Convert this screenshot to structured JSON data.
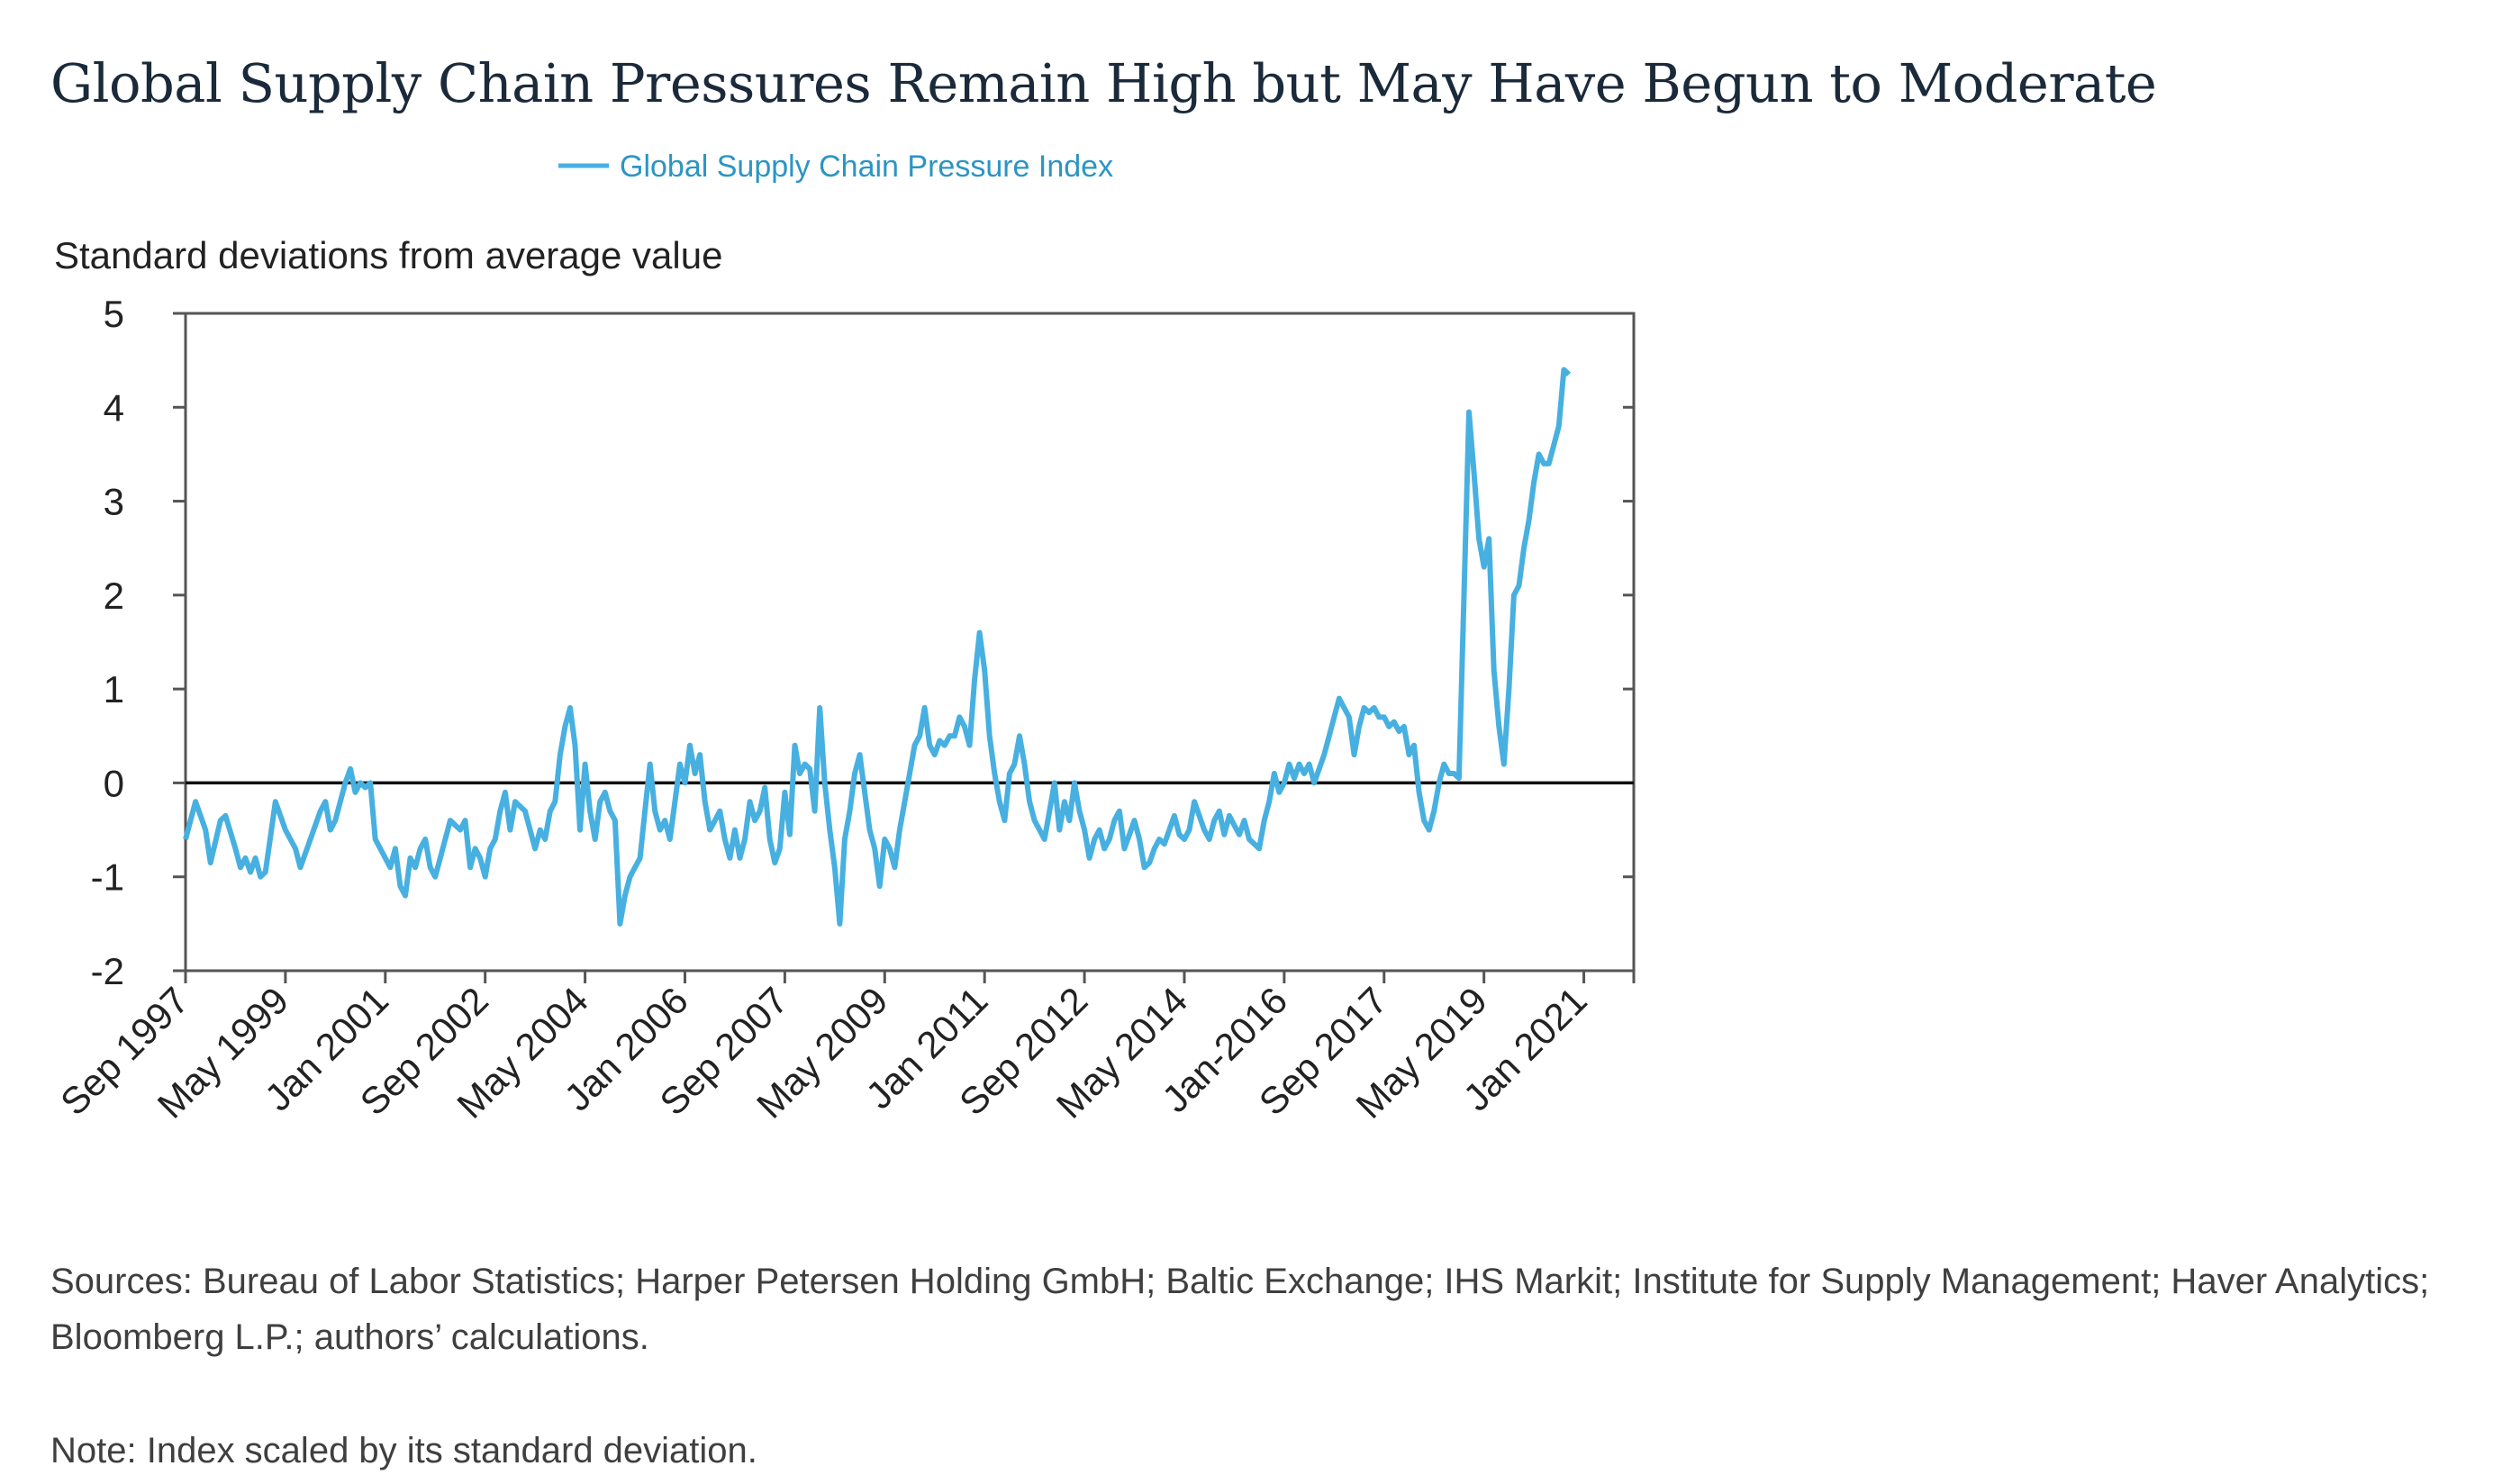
{
  "title": "Global Supply Chain Pressures Remain High but May Have Begun to Moderate",
  "sources": "Sources: Bureau of Labor Statistics; Harper Petersen Holding GmbH; Baltic Exchange; IHS Markit; Institute for Supply Management; Haver Analytics; Bloomberg L.P.; authors’ calculations.",
  "note": "Note: Index scaled by its standard deviation.",
  "colors": {
    "series": "#47b0e0",
    "zero_line": "#111111",
    "axis": "#555555",
    "title": "#1b2a3a"
  },
  "chart_data": {
    "type": "line",
    "title": "",
    "ylabel": "Standard deviations from average value",
    "xlabel": "",
    "ylim": [
      -2,
      5
    ],
    "yticks": [
      5,
      4,
      3,
      2,
      1,
      0,
      -1,
      -2
    ],
    "x_start": "Sep 1997",
    "x_end": "Nov 2021",
    "x_tick_labels": [
      "Sep 1997",
      "May 1999",
      "Jan 2001",
      "Sep 2002",
      "May 2004",
      "Jan 2006",
      "Sep 2007",
      "May 2009",
      "Jan 2011",
      "Sep 2012",
      "May 2014",
      "Jan-2016",
      "Sep 2017",
      "May 2019",
      "Jan 2021"
    ],
    "legend": {
      "position": "top",
      "entries": [
        "Global Supply Chain Pressure Index"
      ]
    },
    "grid": false,
    "zero_line": true,
    "series": [
      {
        "name": "Global Supply Chain Pressure Index",
        "points": [
          [
            "Sep 1997",
            -0.6
          ],
          [
            "Nov 1997",
            -0.2
          ],
          [
            "Jan 1998",
            -0.5
          ],
          [
            "Feb 1998",
            -0.85
          ],
          [
            "Apr 1998",
            -0.4
          ],
          [
            "May 1998",
            -0.35
          ],
          [
            "Jul 1998",
            -0.7
          ],
          [
            "Aug 1998",
            -0.9
          ],
          [
            "Sep 1998",
            -0.8
          ],
          [
            "Oct 1998",
            -0.95
          ],
          [
            "Nov 1998",
            -0.8
          ],
          [
            "Dec 1998",
            -1.0
          ],
          [
            "Jan 1999",
            -0.95
          ],
          [
            "Mar 1999",
            -0.2
          ],
          [
            "May 1999",
            -0.5
          ],
          [
            "Jul 1999",
            -0.7
          ],
          [
            "Aug 1999",
            -0.9
          ],
          [
            "Oct 1999",
            -0.6
          ],
          [
            "Dec 1999",
            -0.3
          ],
          [
            "Jan 2000",
            -0.2
          ],
          [
            "Feb 2000",
            -0.5
          ],
          [
            "Mar 2000",
            -0.4
          ],
          [
            "May 2000",
            0.0
          ],
          [
            "Jun 2000",
            0.15
          ],
          [
            "Jul 2000",
            -0.1
          ],
          [
            "Aug 2000",
            0.0
          ],
          [
            "Sep 2000",
            -0.05
          ],
          [
            "Oct 2000",
            0.0
          ],
          [
            "Nov 2000",
            -0.6
          ],
          [
            "Jan 2001",
            -0.8
          ],
          [
            "Feb 2001",
            -0.9
          ],
          [
            "Mar 2001",
            -0.7
          ],
          [
            "Apr 2001",
            -1.1
          ],
          [
            "May 2001",
            -1.2
          ],
          [
            "Jun 2001",
            -0.8
          ],
          [
            "Jul 2001",
            -0.9
          ],
          [
            "Aug 2001",
            -0.7
          ],
          [
            "Sep 2001",
            -0.6
          ],
          [
            "Oct 2001",
            -0.9
          ],
          [
            "Nov 2001",
            -1.0
          ],
          [
            "Dec 2001",
            -0.8
          ],
          [
            "Feb 2002",
            -0.4
          ],
          [
            "Apr 2002",
            -0.5
          ],
          [
            "May 2002",
            -0.4
          ],
          [
            "Jun 2002",
            -0.9
          ],
          [
            "Jul 2002",
            -0.7
          ],
          [
            "Aug 2002",
            -0.8
          ],
          [
            "Sep 2002",
            -1.0
          ],
          [
            "Oct 2002",
            -0.7
          ],
          [
            "Nov 2002",
            -0.6
          ],
          [
            "Dec 2002",
            -0.3
          ],
          [
            "Jan 2003",
            -0.1
          ],
          [
            "Feb 2003",
            -0.5
          ],
          [
            "Mar 2003",
            -0.2
          ],
          [
            "May 2003",
            -0.3
          ],
          [
            "Jul 2003",
            -0.7
          ],
          [
            "Aug 2003",
            -0.5
          ],
          [
            "Sep 2003",
            -0.6
          ],
          [
            "Oct 2003",
            -0.3
          ],
          [
            "Nov 2003",
            -0.2
          ],
          [
            "Dec 2003",
            0.3
          ],
          [
            "Jan 2004",
            0.6
          ],
          [
            "Feb 2004",
            0.8
          ],
          [
            "Mar 2004",
            0.4
          ],
          [
            "Apr 2004",
            -0.5
          ],
          [
            "May 2004",
            0.2
          ],
          [
            "Jun 2004",
            -0.3
          ],
          [
            "Jul 2004",
            -0.6
          ],
          [
            "Aug 2004",
            -0.2
          ],
          [
            "Sep 2004",
            -0.1
          ],
          [
            "Oct 2004",
            -0.3
          ],
          [
            "Nov 2004",
            -0.4
          ],
          [
            "Dec 2004",
            -1.5
          ],
          [
            "Jan 2005",
            -1.2
          ],
          [
            "Feb 2005",
            -1.0
          ],
          [
            "Mar 2005",
            -0.9
          ],
          [
            "Apr 2005",
            -0.8
          ],
          [
            "May 2005",
            -0.3
          ],
          [
            "Jun 2005",
            0.2
          ],
          [
            "Jul 2005",
            -0.3
          ],
          [
            "Aug 2005",
            -0.5
          ],
          [
            "Sep 2005",
            -0.4
          ],
          [
            "Oct 2005",
            -0.6
          ],
          [
            "Nov 2005",
            -0.2
          ],
          [
            "Dec 2005",
            0.2
          ],
          [
            "Jan 2006",
            0.0
          ],
          [
            "Feb 2006",
            0.4
          ],
          [
            "Mar 2006",
            0.1
          ],
          [
            "Apr 2006",
            0.3
          ],
          [
            "May 2006",
            -0.2
          ],
          [
            "Jun 2006",
            -0.5
          ],
          [
            "Jul 2006",
            -0.4
          ],
          [
            "Aug 2006",
            -0.3
          ],
          [
            "Sep 2006",
            -0.6
          ],
          [
            "Oct 2006",
            -0.8
          ],
          [
            "Nov 2006",
            -0.5
          ],
          [
            "Dec 2006",
            -0.8
          ],
          [
            "Jan 2007",
            -0.6
          ],
          [
            "Feb 2007",
            -0.2
          ],
          [
            "Mar 2007",
            -0.4
          ],
          [
            "Apr 2007",
            -0.3
          ],
          [
            "May 2007",
            -0.05
          ],
          [
            "Jun 2007",
            -0.6
          ],
          [
            "Jul 2007",
            -0.85
          ],
          [
            "Aug 2007",
            -0.7
          ],
          [
            "Sep 2007",
            -0.1
          ],
          [
            "Oct 2007",
            -0.55
          ],
          [
            "Nov 2007",
            0.4
          ],
          [
            "Dec 2007",
            0.1
          ],
          [
            "Jan 2008",
            0.2
          ],
          [
            "Feb 2008",
            0.15
          ],
          [
            "Mar 2008",
            -0.3
          ],
          [
            "Apr 2008",
            0.8
          ],
          [
            "May 2008",
            0.0
          ],
          [
            "Jun 2008",
            -0.5
          ],
          [
            "Jul 2008",
            -0.9
          ],
          [
            "Aug 2008",
            -1.5
          ],
          [
            "Sep 2008",
            -0.6
          ],
          [
            "Oct 2008",
            -0.3
          ],
          [
            "Nov 2008",
            0.1
          ],
          [
            "Dec 2008",
            0.3
          ],
          [
            "Jan 2009",
            -0.1
          ],
          [
            "Feb 2009",
            -0.5
          ],
          [
            "Mar 2009",
            -0.7
          ],
          [
            "Apr 2009",
            -1.1
          ],
          [
            "May 2009",
            -0.6
          ],
          [
            "Jun 2009",
            -0.7
          ],
          [
            "Jul 2009",
            -0.9
          ],
          [
            "Aug 2009",
            -0.5
          ],
          [
            "Sep 2009",
            -0.2
          ],
          [
            "Oct 2009",
            0.1
          ],
          [
            "Nov 2009",
            0.4
          ],
          [
            "Dec 2009",
            0.5
          ],
          [
            "Jan 2010",
            0.8
          ],
          [
            "Feb 2010",
            0.4
          ],
          [
            "Mar 2010",
            0.3
          ],
          [
            "Apr 2010",
            0.45
          ],
          [
            "May 2010",
            0.4
          ],
          [
            "Jun 2010",
            0.5
          ],
          [
            "Jul 2010",
            0.5
          ],
          [
            "Aug 2010",
            0.7
          ],
          [
            "Sep 2010",
            0.6
          ],
          [
            "Oct 2010",
            0.4
          ],
          [
            "Nov 2010",
            1.1
          ],
          [
            "Dec 2010",
            1.6
          ],
          [
            "Jan 2011",
            1.2
          ],
          [
            "Feb 2011",
            0.5
          ],
          [
            "Mar 2011",
            0.1
          ],
          [
            "Apr 2011",
            -0.2
          ],
          [
            "May 2011",
            -0.4
          ],
          [
            "Jun 2011",
            0.1
          ],
          [
            "Jul 2011",
            0.2
          ],
          [
            "Aug 2011",
            0.5
          ],
          [
            "Sep 2011",
            0.2
          ],
          [
            "Oct 2011",
            -0.2
          ],
          [
            "Nov 2011",
            -0.4
          ],
          [
            "Dec 2011",
            -0.5
          ],
          [
            "Jan 2012",
            -0.6
          ],
          [
            "Feb 2012",
            -0.3
          ],
          [
            "Mar 2012",
            0.0
          ],
          [
            "Apr 2012",
            -0.5
          ],
          [
            "May 2012",
            -0.2
          ],
          [
            "Jun 2012",
            -0.4
          ],
          [
            "Jul 2012",
            0.0
          ],
          [
            "Aug 2012",
            -0.3
          ],
          [
            "Sep 2012",
            -0.5
          ],
          [
            "Oct 2012",
            -0.8
          ],
          [
            "Nov 2012",
            -0.6
          ],
          [
            "Dec 2012",
            -0.5
          ],
          [
            "Jan 2013",
            -0.7
          ],
          [
            "Feb 2013",
            -0.6
          ],
          [
            "Mar 2013",
            -0.4
          ],
          [
            "Apr 2013",
            -0.3
          ],
          [
            "May 2013",
            -0.7
          ],
          [
            "Jun 2013",
            -0.55
          ],
          [
            "Jul 2013",
            -0.4
          ],
          [
            "Aug 2013",
            -0.6
          ],
          [
            "Sep 2013",
            -0.9
          ],
          [
            "Oct 2013",
            -0.85
          ],
          [
            "Nov 2013",
            -0.7
          ],
          [
            "Dec 2013",
            -0.6
          ],
          [
            "Jan 2014",
            -0.65
          ],
          [
            "Feb 2014",
            -0.5
          ],
          [
            "Mar 2014",
            -0.35
          ],
          [
            "Apr 2014",
            -0.55
          ],
          [
            "May 2014",
            -0.6
          ],
          [
            "Jun 2014",
            -0.5
          ],
          [
            "Jul 2014",
            -0.2
          ],
          [
            "Aug 2014",
            -0.35
          ],
          [
            "Sep 2014",
            -0.5
          ],
          [
            "Oct 2014",
            -0.6
          ],
          [
            "Nov 2014",
            -0.4
          ],
          [
            "Dec 2014",
            -0.3
          ],
          [
            "Jan 2015",
            -0.55
          ],
          [
            "Feb 2015",
            -0.35
          ],
          [
            "Mar 2015",
            -0.45
          ],
          [
            "Apr 2015",
            -0.55
          ],
          [
            "May 2015",
            -0.4
          ],
          [
            "Jun 2015",
            -0.6
          ],
          [
            "Jul 2015",
            -0.65
          ],
          [
            "Aug 2015",
            -0.7
          ],
          [
            "Sep 2015",
            -0.4
          ],
          [
            "Oct 2015",
            -0.2
          ],
          [
            "Nov 2015",
            0.1
          ],
          [
            "Dec 2015",
            -0.1
          ],
          [
            "Jan 2016",
            0.0
          ],
          [
            "Feb 2016",
            0.2
          ],
          [
            "Mar 2016",
            0.05
          ],
          [
            "Apr 2016",
            0.2
          ],
          [
            "May 2016",
            0.1
          ],
          [
            "Jun 2016",
            0.2
          ],
          [
            "Jul 2016",
            0.0
          ],
          [
            "Aug 2016",
            0.15
          ],
          [
            "Sep 2016",
            0.3
          ],
          [
            "Oct 2016",
            0.5
          ],
          [
            "Nov 2016",
            0.7
          ],
          [
            "Dec 2016",
            0.9
          ],
          [
            "Jan 2017",
            0.8
          ],
          [
            "Feb 2017",
            0.7
          ],
          [
            "Mar 2017",
            0.3
          ],
          [
            "Apr 2017",
            0.6
          ],
          [
            "May 2017",
            0.8
          ],
          [
            "Jun 2017",
            0.75
          ],
          [
            "Jul 2017",
            0.8
          ],
          [
            "Aug 2017",
            0.7
          ],
          [
            "Sep 2017",
            0.7
          ],
          [
            "Oct 2017",
            0.6
          ],
          [
            "Nov 2017",
            0.65
          ],
          [
            "Dec 2017",
            0.55
          ],
          [
            "Jan 2018",
            0.6
          ],
          [
            "Feb 2018",
            0.3
          ],
          [
            "Mar 2018",
            0.4
          ],
          [
            "Apr 2018",
            -0.1
          ],
          [
            "May 2018",
            -0.4
          ],
          [
            "Jun 2018",
            -0.5
          ],
          [
            "Jul 2018",
            -0.3
          ],
          [
            "Aug 2018",
            0.0
          ],
          [
            "Sep 2018",
            0.2
          ],
          [
            "Oct 2018",
            0.1
          ],
          [
            "Nov 2018",
            0.1
          ],
          [
            "Dec 2018",
            0.05
          ],
          [
            "Jan 2019",
            2.0
          ],
          [
            "Feb 2019",
            3.95
          ],
          [
            "Mar 2019",
            3.3
          ],
          [
            "Apr 2019",
            2.6
          ],
          [
            "May 2019",
            2.3
          ],
          [
            "Jun 2019",
            2.6
          ],
          [
            "Jul 2019",
            1.2
          ],
          [
            "Aug 2019",
            0.6
          ],
          [
            "Sep 2019",
            0.2
          ],
          [
            "Oct 2019",
            1.0
          ],
          [
            "Nov 2019",
            2.0
          ],
          [
            "Dec 2019",
            2.1
          ],
          [
            "Jan 2020",
            2.5
          ],
          [
            "Feb 2020",
            2.8
          ],
          [
            "Mar 2020",
            3.2
          ],
          [
            "Apr 2020",
            3.5
          ],
          [
            "May 2020",
            3.4
          ],
          [
            "Jun 2020",
            3.4
          ],
          [
            "Jul 2020",
            3.6
          ],
          [
            "Aug 2020",
            3.8
          ],
          [
            "Sep 2020",
            4.4
          ],
          [
            "Oct 2020",
            4.35
          ]
        ]
      }
    ]
  }
}
